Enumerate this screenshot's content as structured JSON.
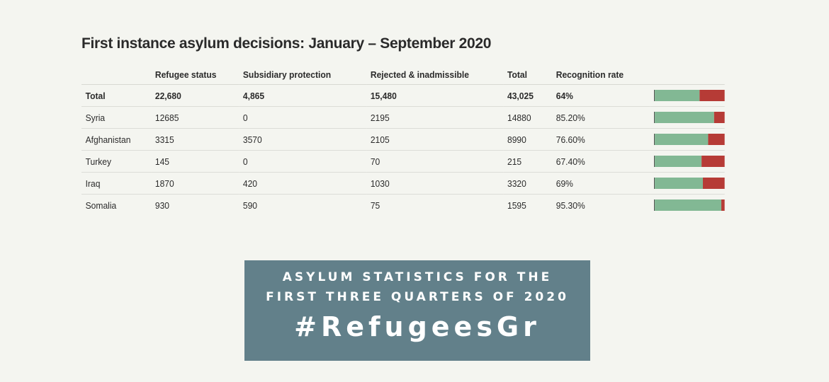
{
  "chart_data": {
    "type": "table",
    "title": "First instance asylum decisions: January – September 2020",
    "columns": [
      "",
      "Refugee status",
      "Subsidiary protection",
      "Rejected & inadmissible",
      "Total",
      "Recognition rate"
    ],
    "total_row": {
      "label": "Total",
      "refugee_status": "22,680",
      "subsidiary_protection": "4,865",
      "rejected": "15,480",
      "total": "43,025",
      "recognition_rate": "64%",
      "rate_value": 64
    },
    "rows": [
      {
        "label": "Syria",
        "refugee_status": "12685",
        "subsidiary_protection": "0",
        "rejected": "2195",
        "total": "14880",
        "recognition_rate": "85.20%",
        "rate_value": 85.2
      },
      {
        "label": "Afghanistan",
        "refugee_status": "3315",
        "subsidiary_protection": "3570",
        "rejected": "2105",
        "total": "8990",
        "recognition_rate": "76.60%",
        "rate_value": 76.6
      },
      {
        "label": "Turkey",
        "refugee_status": "145",
        "subsidiary_protection": "0",
        "rejected": "70",
        "total": "215",
        "recognition_rate": "67.40%",
        "rate_value": 67.4
      },
      {
        "label": "Iraq",
        "refugee_status": "1870",
        "subsidiary_protection": "420",
        "rejected": "1030",
        "total": "3320",
        "recognition_rate": "69%",
        "rate_value": 69
      },
      {
        "label": "Somalia",
        "refugee_status": "930",
        "subsidiary_protection": "590",
        "rejected": "75",
        "total": "1595",
        "recognition_rate": "95.30%",
        "rate_value": 95.3
      }
    ],
    "bar_colors": {
      "positive": "#82b894",
      "negative": "#b63b36"
    }
  },
  "banner": {
    "line1": "Asylum statistics for the",
    "line2": "first three quarters of 2020",
    "hashtag": "#RefugeesGr",
    "background": "#62808a"
  }
}
